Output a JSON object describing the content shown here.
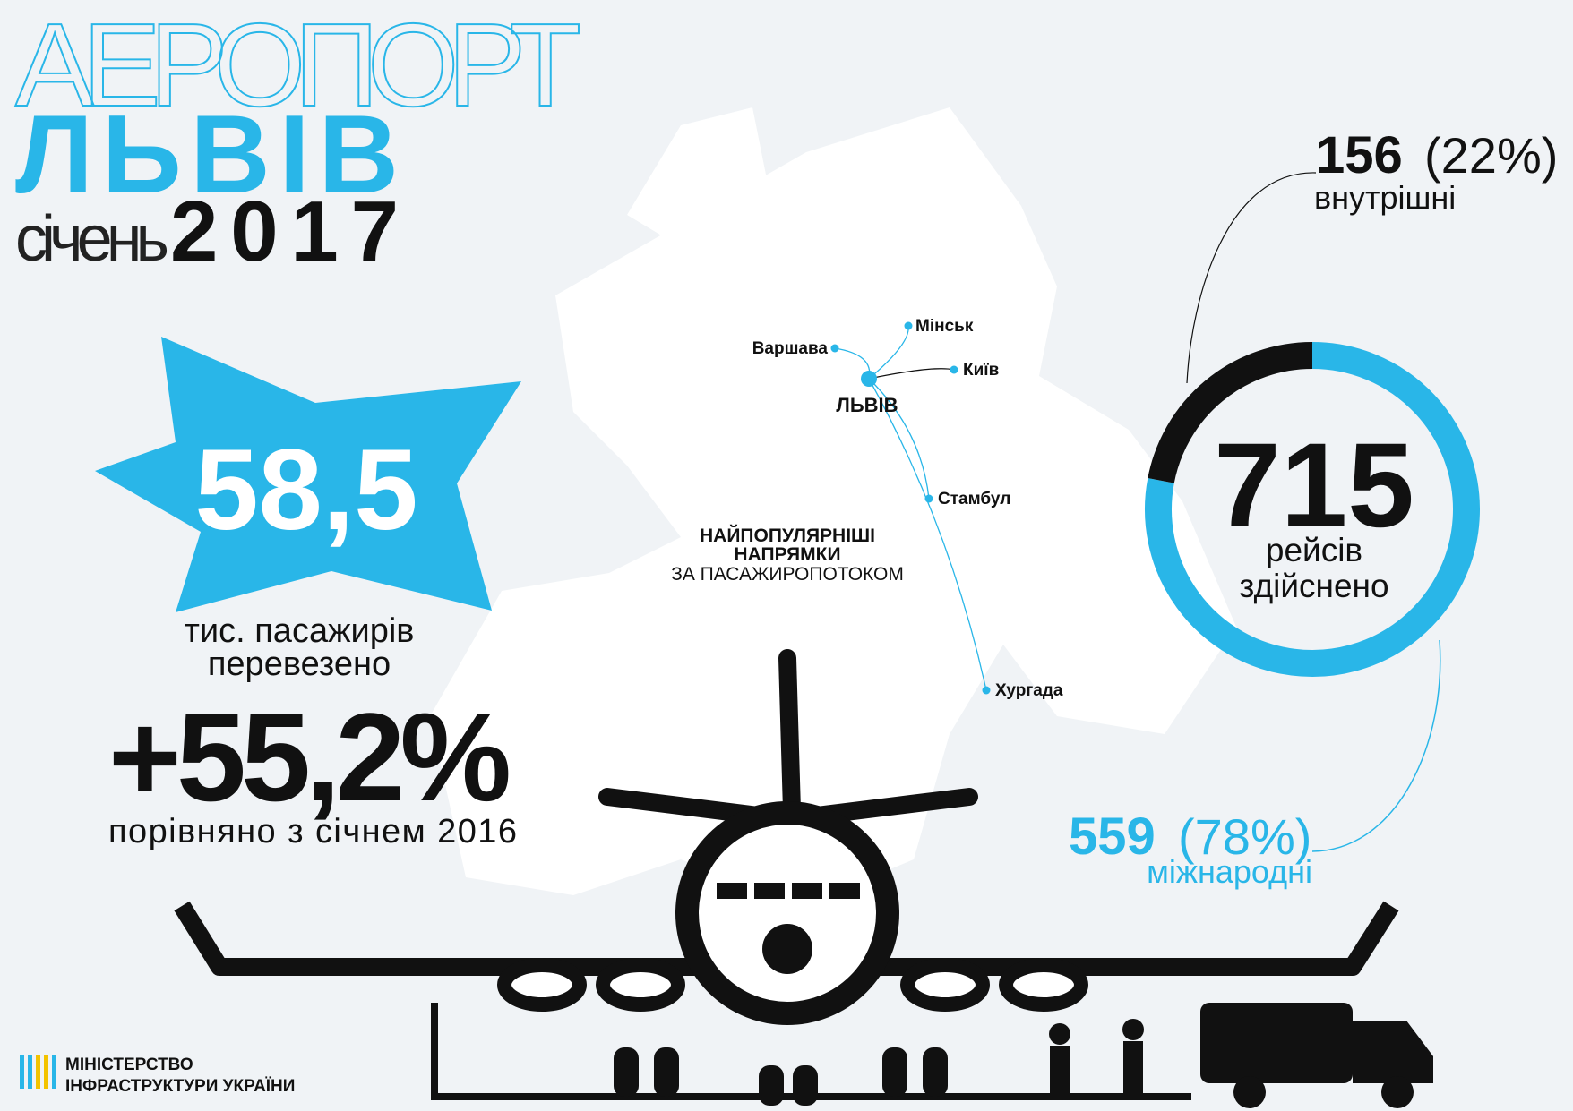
{
  "header": {
    "line1": "АЕРОПОРТ",
    "line2": "ЛЬВІВ",
    "month": "січень",
    "year": "2017"
  },
  "passengers": {
    "value": "58,5",
    "label_line1": "тис. пасажирів",
    "label_line2": "перевезено"
  },
  "growth": {
    "value": "+55,2%",
    "label": "порівняно з січнем 2016"
  },
  "map": {
    "title_line1": "НАЙПОПУЛЯРНІШІ",
    "title_line2": "НАПРЯМКИ",
    "subtitle": "ЗА ПАСАЖИРОПОТОКОМ",
    "origin": "ЛЬВІВ",
    "destinations": [
      "Варшава",
      "Мінськ",
      "Київ",
      "Стамбул",
      "Хургада"
    ]
  },
  "flights": {
    "total": "715",
    "label_line1": "рейсів",
    "label_line2": "здійснено",
    "domestic": {
      "count": "156",
      "share": 22,
      "share_label": "(22%)",
      "label": "внутрішні",
      "color": "#111111"
    },
    "international": {
      "count": "559",
      "share": 78,
      "share_label": "(78%)",
      "label": "міжнародні",
      "color": "#29b6e8"
    }
  },
  "footer": {
    "line1": "МІНІСТЕРСТВО",
    "line2": "ІНФРАСТРУКТУРИ УКРАЇНИ"
  }
}
